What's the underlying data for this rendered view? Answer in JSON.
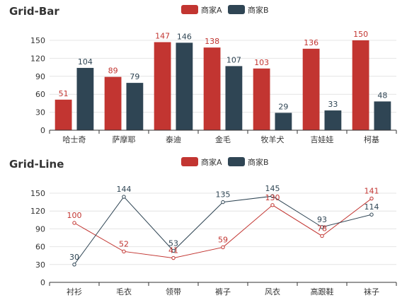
{
  "colors": {
    "seriesA": "#c23531",
    "seriesB": "#2f4554"
  },
  "chart_data": [
    {
      "type": "bar",
      "title": "Grid-Bar",
      "legend": [
        "商家A",
        "商家B"
      ],
      "legend_position": "top-center",
      "categories": [
        "哈士奇",
        "萨摩耶",
        "泰迪",
        "金毛",
        "牧羊犬",
        "吉娃娃",
        "柯基"
      ],
      "series": [
        {
          "name": "商家A",
          "values": [
            51,
            89,
            147,
            138,
            103,
            136,
            150
          ]
        },
        {
          "name": "商家B",
          "values": [
            104,
            79,
            146,
            107,
            29,
            33,
            48
          ]
        }
      ],
      "yticks": [
        0,
        30,
        60,
        90,
        120,
        150
      ],
      "ylim": [
        0,
        150
      ],
      "grid": true
    },
    {
      "type": "line",
      "title": "Grid-Line",
      "legend": [
        "商家A",
        "商家B"
      ],
      "legend_position": "top-center",
      "categories": [
        "衬衫",
        "毛衣",
        "领带",
        "裤子",
        "风衣",
        "高跟鞋",
        "袜子"
      ],
      "series": [
        {
          "name": "商家A",
          "values": [
            100,
            52,
            41,
            59,
            130,
            78,
            141
          ]
        },
        {
          "name": "商家B",
          "values": [
            30,
            144,
            53,
            135,
            145,
            93,
            114
          ]
        }
      ],
      "yticks": [
        0,
        30,
        60,
        90,
        120,
        150
      ],
      "ylim": [
        0,
        150
      ],
      "grid": true
    }
  ]
}
